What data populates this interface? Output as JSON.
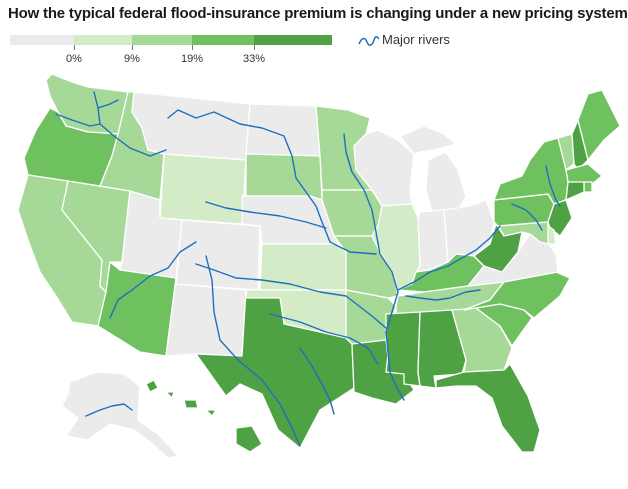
{
  "title": "How the typical federal flood-insurance premium is changing under a new pricing system",
  "legend": {
    "ticks": [
      "0%",
      "9%",
      "19%",
      "33%"
    ],
    "classes": [
      {
        "color": "#ebebeb"
      },
      {
        "color": "#d3ebc7"
      },
      {
        "color": "#a6d997"
      },
      {
        "color": "#6fc05f"
      },
      {
        "color": "#4ea244"
      }
    ],
    "rivers_label": "Major rivers"
  },
  "colors": {
    "c0": "#ebebeb",
    "c1": "#d3ebc7",
    "c2": "#a6d997",
    "c3": "#6fc05f",
    "c4": "#4ea244",
    "river": "#1f6fbf"
  },
  "states": {
    "WA": 2,
    "OR": 3,
    "CA": 2,
    "NV": 2,
    "ID": 2,
    "MT": 0,
    "WY": 1,
    "UT": 0,
    "AZ": 3,
    "CO": 0,
    "NM": 0,
    "ND": 0,
    "SD": 2,
    "NE": 0,
    "KS": 1,
    "OK": 1,
    "TX": 4,
    "MN": 2,
    "IA": 2,
    "MO": 2,
    "AR": 2,
    "LA": 4,
    "WI": 0,
    "IL": 1,
    "MI": 0,
    "IN": 0,
    "OH": 0,
    "KY": 3,
    "TN": 2,
    "MS": 4,
    "AL": 4,
    "GA": 2,
    "FL": 4,
    "SC": 3,
    "NC": 3,
    "VA": 0,
    "WV": 4,
    "PA": 3,
    "NY": 3,
    "VT": 2,
    "NH": 4,
    "ME": 3,
    "MA": 3,
    "RI": 3,
    "CT": 4,
    "NJ": 4,
    "DE": 1,
    "MD": 2,
    "AK": 0,
    "HI": 4
  }
}
